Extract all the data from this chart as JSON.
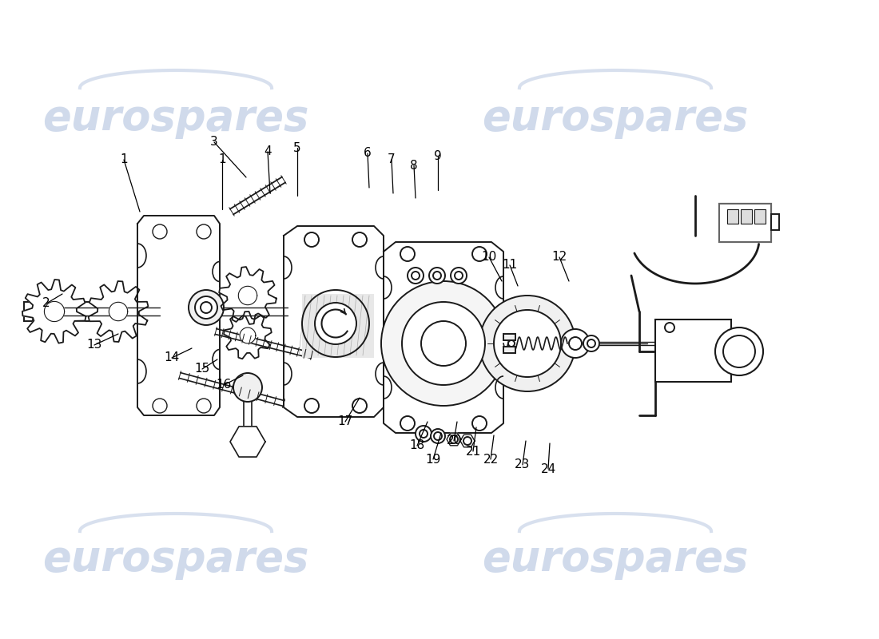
{
  "bg_color": "#ffffff",
  "wm_color": "#c8d4e8",
  "wm_text": "eurospares",
  "lc": "#1a1a1a",
  "lw": 1.4,
  "fig_w": 11.0,
  "fig_h": 8.0,
  "labels": [
    [
      "1",
      155,
      195,
      165,
      240
    ],
    [
      "1",
      280,
      195,
      278,
      240
    ],
    [
      "2",
      55,
      370,
      75,
      360
    ],
    [
      "3",
      268,
      175,
      306,
      218
    ],
    [
      "1",
      282,
      195,
      282,
      240
    ],
    [
      "4",
      335,
      188,
      340,
      240
    ],
    [
      "5",
      370,
      188,
      368,
      240
    ],
    [
      "6",
      462,
      188,
      465,
      230
    ],
    [
      "7",
      490,
      198,
      492,
      238
    ],
    [
      "8",
      518,
      205,
      520,
      240
    ],
    [
      "9",
      545,
      192,
      546,
      232
    ],
    [
      "10",
      612,
      318,
      628,
      348
    ],
    [
      "11",
      638,
      328,
      648,
      355
    ],
    [
      "12",
      698,
      320,
      710,
      350
    ],
    [
      "13",
      118,
      430,
      148,
      415
    ],
    [
      "14",
      215,
      445,
      240,
      432
    ],
    [
      "15",
      253,
      458,
      272,
      448
    ],
    [
      "16",
      278,
      480,
      303,
      468
    ],
    [
      "17",
      432,
      525,
      450,
      495
    ],
    [
      "18",
      522,
      550,
      538,
      520
    ],
    [
      "19",
      542,
      570,
      552,
      538
    ],
    [
      "20",
      568,
      548,
      575,
      522
    ],
    [
      "21",
      590,
      562,
      595,
      532
    ],
    [
      "22",
      614,
      570,
      620,
      540
    ],
    [
      "23",
      654,
      578,
      658,
      548
    ],
    [
      "24",
      684,
      583,
      688,
      550
    ]
  ]
}
